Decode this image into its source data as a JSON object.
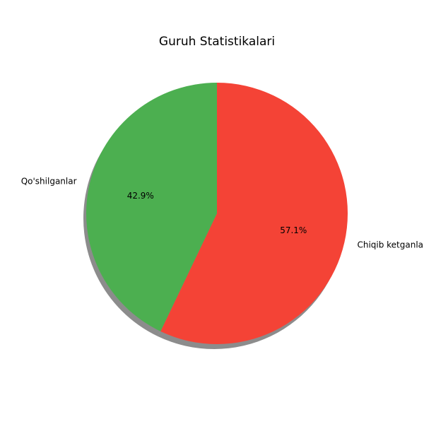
{
  "chart_data": {
    "type": "pie",
    "title": "Guruh Statistikalari",
    "start_angle_deg": 90,
    "direction": "clockwise",
    "shadow": true,
    "slices": [
      {
        "label": "Chiqib ketganlar",
        "value": 57.1,
        "pct_label": "57.1%",
        "color": "#F44336"
      },
      {
        "label": "Qo'shilganlar",
        "value": 42.9,
        "pct_label": "42.9%",
        "color": "#4CAF50"
      }
    ]
  }
}
